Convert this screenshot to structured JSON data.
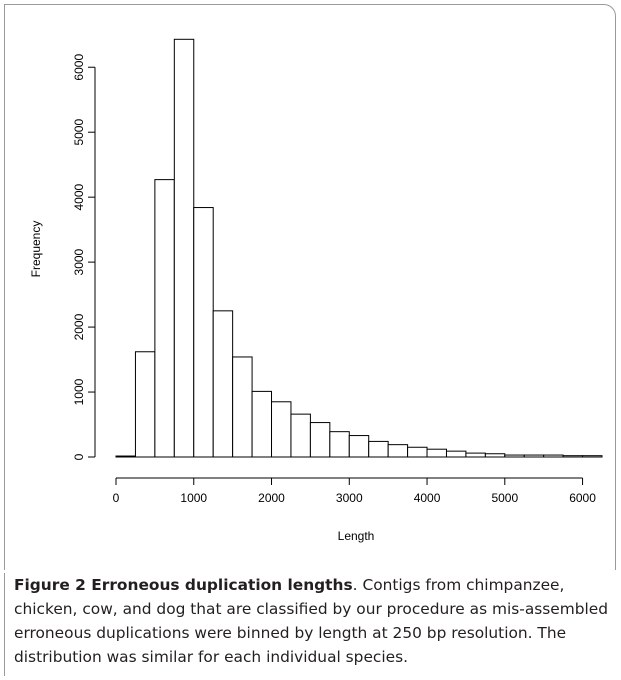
{
  "chart_data": {
    "type": "bar",
    "title": "",
    "xlabel": "Length",
    "ylabel": "Frequency",
    "bin_width": 250,
    "bins_start": [
      0,
      250,
      500,
      750,
      1000,
      1250,
      1500,
      1750,
      2000,
      2250,
      2500,
      2750,
      3000,
      3250,
      3500,
      3750,
      4000,
      4250,
      4500,
      4750,
      5000,
      5250,
      5500,
      5750,
      6000
    ],
    "values": [
      15,
      1620,
      4270,
      6430,
      3840,
      2250,
      1540,
      1010,
      850,
      660,
      530,
      390,
      330,
      240,
      190,
      150,
      120,
      90,
      60,
      50,
      30,
      30,
      30,
      20,
      20
    ],
    "xlim": [
      0,
      6250
    ],
    "ylim": [
      0,
      6450
    ],
    "x_ticks": [
      0,
      1000,
      2000,
      3000,
      4000,
      5000,
      6000
    ],
    "y_ticks": [
      0,
      1000,
      2000,
      3000,
      4000,
      5000,
      6000
    ],
    "bar_fill": "#ffffff",
    "bar_stroke": "#000000",
    "grid": false
  },
  "caption": {
    "title": "Figure 2 Erroneous duplication lengths",
    "body": ". Contigs from chimpanzee, chicken, cow, and dog that are classified by our procedure as mis-assembled erroneous duplications were binned by length at 250 bp resolution. The distribution was similar for each individual species."
  }
}
